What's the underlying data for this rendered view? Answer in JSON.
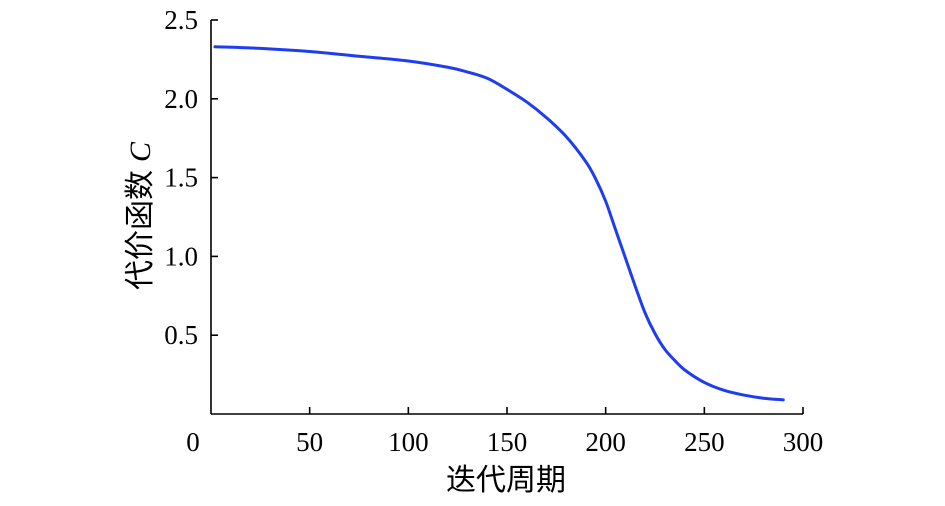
{
  "chart_data": {
    "type": "line",
    "title": "",
    "xlabel": "迭代周期",
    "ylabel": "代价函数",
    "ylabel_symbol": "C",
    "xlim": [
      0,
      300
    ],
    "ylim": [
      0,
      2.5
    ],
    "x_ticks": [
      "0",
      "50",
      "100",
      "150",
      "200",
      "250",
      "300"
    ],
    "y_ticks": [
      "0.5",
      "1.0",
      "1.5",
      "2.0",
      "2.5"
    ],
    "x_tick_values": [
      0,
      50,
      100,
      150,
      200,
      250,
      300
    ],
    "y_tick_values": [
      0.5,
      1.0,
      1.5,
      2.0,
      2.5
    ],
    "grid": false,
    "legend": "none",
    "series": [
      {
        "color": "#1f3df0",
        "x": [
          2,
          25,
          50,
          75,
          100,
          120,
          130,
          140,
          150,
          160,
          170,
          180,
          190,
          195,
          200,
          205,
          210,
          215,
          220,
          225,
          230,
          235,
          240,
          250,
          260,
          270,
          280,
          290
        ],
        "y": [
          2.33,
          2.32,
          2.3,
          2.27,
          2.24,
          2.2,
          2.17,
          2.13,
          2.06,
          1.98,
          1.88,
          1.76,
          1.6,
          1.49,
          1.35,
          1.17,
          0.99,
          0.81,
          0.64,
          0.51,
          0.41,
          0.34,
          0.28,
          0.2,
          0.15,
          0.12,
          0.1,
          0.09
        ]
      }
    ]
  }
}
